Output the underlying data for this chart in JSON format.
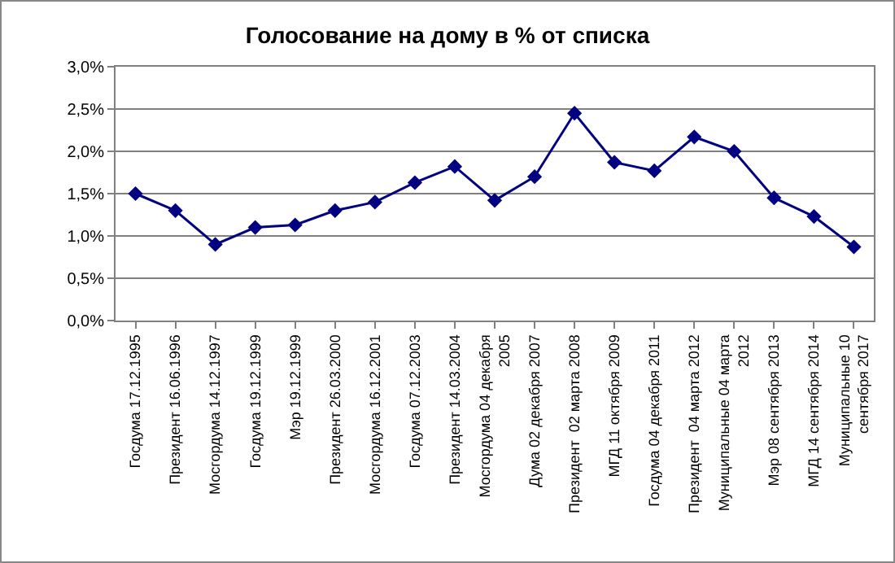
{
  "chart_data": {
    "type": "line",
    "title": "Голосование на дому в % от списка",
    "categories": [
      "Госдума 17.12.1995",
      "Президент 16.06.1996",
      "Мосгордума 14.12.1997",
      "Госдума 19.12.1999",
      "Мэр 19.12.1999",
      "Президент 26.03.2000",
      "Мосгордума 16.12.2001",
      "Госдума 07.12.2003",
      "Президент 14.03.2004",
      "Мосгордума 04 декабря\n2005",
      "Дума 02 декабря 2007",
      "Президент  02 марта 2008",
      "МГД 11 октября 2009",
      "Госдума 04 декабря 2011",
      "Президент  04 марта 2012",
      "Муниципальные 04 марта\n2012",
      "Мэр 08 сентября 2013",
      "МГД 14 сентября 2014",
      "Муниципальные 10\nсентября 2017"
    ],
    "series": [
      {
        "color": "#000080",
        "values": [
          1.5,
          1.3,
          0.9,
          1.1,
          1.13,
          1.3,
          1.4,
          1.63,
          1.82,
          1.42,
          1.7,
          2.45,
          1.87,
          1.77,
          2.17,
          2.0,
          1.45,
          1.23,
          0.87
        ]
      }
    ],
    "ylim": [
      0,
      3
    ],
    "yticks": [
      {
        "value": 0,
        "label": "0,0%"
      },
      {
        "value": 0.5,
        "label": "0,5%"
      },
      {
        "value": 1,
        "label": "1,0%"
      },
      {
        "value": 1.5,
        "label": "1,5%"
      },
      {
        "value": 2,
        "label": "2,0%"
      },
      {
        "value": 2.5,
        "label": "2,5%"
      },
      {
        "value": 3,
        "label": "3,0%"
      }
    ],
    "grid": "y",
    "marker": "diamond",
    "line_style": "solid"
  }
}
